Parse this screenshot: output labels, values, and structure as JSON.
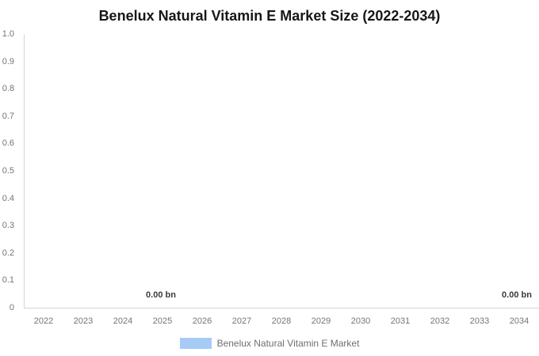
{
  "chart_data": {
    "type": "bar",
    "title": "Benelux Natural Vitamin E Market Size (2022-2034)",
    "categories": [
      "2022",
      "2023",
      "2024",
      "2025",
      "2026",
      "2027",
      "2028",
      "2029",
      "2030",
      "2031",
      "2032",
      "2033",
      "2034"
    ],
    "series": [
      {
        "name": "Benelux Natural Vitamin E Market",
        "values": [
          0,
          0,
          0,
          0,
          0,
          0,
          0,
          0,
          0,
          0,
          0,
          0,
          0
        ],
        "color": "#a6cbf5"
      }
    ],
    "unit": "bn",
    "xlabel": "",
    "ylabel": "",
    "ylim": [
      0,
      1.0
    ],
    "y_ticks": [
      "1.0",
      "0.9",
      "0.8",
      "0.7",
      "0.6",
      "0.5",
      "0.4",
      "0.3",
      "0.2",
      "0.1",
      "0"
    ],
    "grid": false,
    "legend_position": "bottom",
    "data_labels": [
      {
        "text": "0.00 bn",
        "category": "2025"
      },
      {
        "text": "0.00 bn",
        "category": "2034"
      }
    ]
  },
  "legend": {
    "entries": [
      {
        "label": "Benelux Natural Vitamin E Market",
        "swatch_color": "#a6cbf5"
      }
    ]
  },
  "colors": {
    "background": "#ffffff",
    "title_text": "#171717",
    "axis_line": "#d6d6d6",
    "tick_text": "#757575",
    "data_label_text": "#3a3a3a",
    "legend_text": "#6f6f6f",
    "series_fill": "#a6cbf5"
  }
}
